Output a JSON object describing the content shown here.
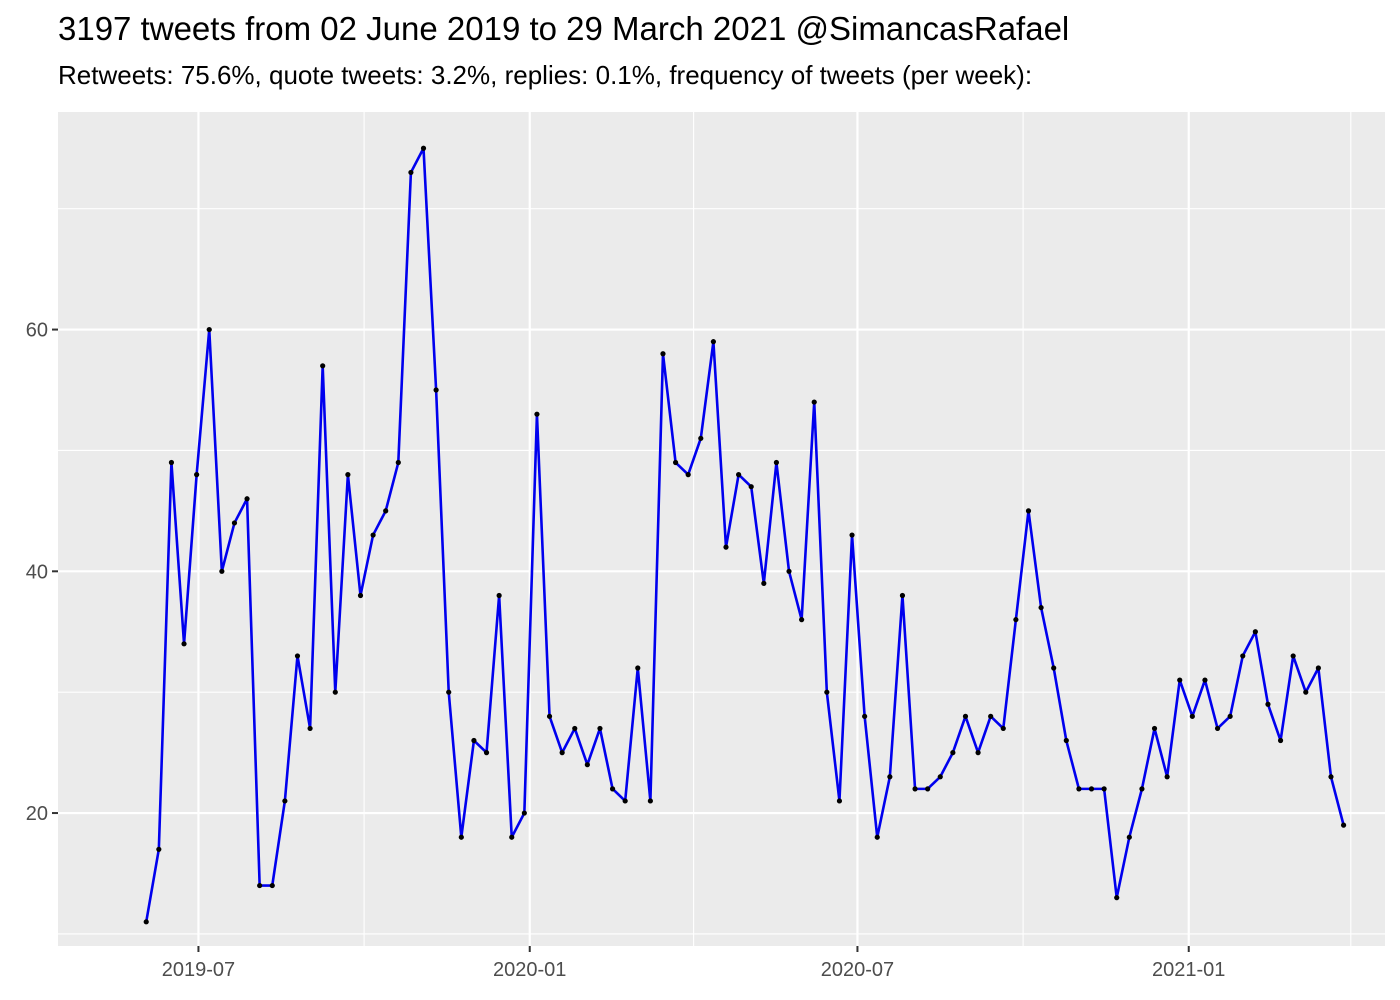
{
  "title": "3197 tweets from 02 June 2019 to 29 March 2021 @SimancasRafael",
  "subtitle": "Retweets: 75.6%, quote tweets: 3.2%, replies: 0.1%, frequency of tweets (per week):",
  "colors": {
    "panel_background": "#ebebeb",
    "grid": "#ffffff",
    "line": "#0000ee",
    "point": "#000000"
  },
  "chart_data": {
    "type": "line",
    "title": "3197 tweets from 02 June 2019 to 29 March 2021 @SimancasRafael",
    "subtitle": "Retweets: 75.6%, quote tweets: 3.2%, replies: 0.1%, frequency of tweets (per week):",
    "xlabel": "",
    "ylabel": "",
    "grid": true,
    "legend": "none",
    "xlim": [
      "2019-04-14",
      "2021-04-20"
    ],
    "ylim": [
      9,
      78
    ],
    "x_ticks": [
      {
        "date": "2019-07-01",
        "label": "2019-07"
      },
      {
        "date": "2020-01-01",
        "label": "2020-01"
      },
      {
        "date": "2020-07-01",
        "label": "2020-07"
      },
      {
        "date": "2021-01-01",
        "label": "2021-01"
      }
    ],
    "x_minor": [
      "2019-10-01",
      "2020-04-01",
      "2020-10-01",
      "2021-04-01"
    ],
    "y_ticks": [
      20,
      40,
      60
    ],
    "y_minor": [
      10,
      30,
      50,
      70
    ],
    "series": [
      {
        "x": [
          "2019-06-02",
          "2019-06-09",
          "2019-06-16",
          "2019-06-23",
          "2019-06-30",
          "2019-07-07",
          "2019-07-14",
          "2019-07-21",
          "2019-07-28",
          "2019-08-04",
          "2019-08-11",
          "2019-08-18",
          "2019-08-25",
          "2019-09-01",
          "2019-09-08",
          "2019-09-15",
          "2019-09-22",
          "2019-09-29",
          "2019-10-06",
          "2019-10-13",
          "2019-10-20",
          "2019-10-27",
          "2019-11-03",
          "2019-11-10",
          "2019-11-17",
          "2019-11-24",
          "2019-12-01",
          "2019-12-08",
          "2019-12-15",
          "2019-12-22",
          "2019-12-29",
          "2020-01-05",
          "2020-01-12",
          "2020-01-19",
          "2020-01-26",
          "2020-02-02",
          "2020-02-09",
          "2020-02-16",
          "2020-02-23",
          "2020-03-01",
          "2020-03-08",
          "2020-03-15",
          "2020-03-22",
          "2020-03-29",
          "2020-04-05",
          "2020-04-12",
          "2020-04-19",
          "2020-04-26",
          "2020-05-03",
          "2020-05-10",
          "2020-05-17",
          "2020-05-24",
          "2020-05-31",
          "2020-06-07",
          "2020-06-14",
          "2020-06-21",
          "2020-06-28",
          "2020-07-05",
          "2020-07-12",
          "2020-07-19",
          "2020-07-26",
          "2020-08-02",
          "2020-08-09",
          "2020-08-16",
          "2020-08-23",
          "2020-08-30",
          "2020-09-06",
          "2020-09-13",
          "2020-09-20",
          "2020-09-27",
          "2020-10-04",
          "2020-10-11",
          "2020-10-18",
          "2020-10-25",
          "2020-11-01",
          "2020-11-08",
          "2020-11-15",
          "2020-11-22",
          "2020-11-29",
          "2020-12-06",
          "2020-12-13",
          "2020-12-20",
          "2020-12-27",
          "2021-01-03",
          "2021-01-10",
          "2021-01-17",
          "2021-01-24",
          "2021-01-31",
          "2021-02-07",
          "2021-02-14",
          "2021-02-21",
          "2021-02-28",
          "2021-03-07",
          "2021-03-14",
          "2021-03-21",
          "2021-03-28"
        ],
        "values": [
          11,
          17,
          49,
          34,
          48,
          60,
          40,
          44,
          46,
          14,
          14,
          21,
          33,
          27,
          57,
          30,
          48,
          38,
          43,
          45,
          49,
          73,
          75,
          55,
          30,
          18,
          26,
          25,
          38,
          18,
          20,
          53,
          28,
          25,
          27,
          24,
          27,
          22,
          21,
          32,
          21,
          58,
          49,
          48,
          51,
          59,
          42,
          48,
          47,
          39,
          49,
          40,
          36,
          54,
          30,
          21,
          43,
          28,
          18,
          23,
          38,
          22,
          22,
          23,
          25,
          28,
          25,
          28,
          27,
          36,
          45,
          37,
          32,
          26,
          22,
          22,
          22,
          13,
          18,
          22,
          27,
          23,
          31,
          28,
          31,
          27,
          28,
          33,
          35,
          29,
          26,
          33,
          30,
          32,
          23,
          19
        ]
      }
    ]
  }
}
